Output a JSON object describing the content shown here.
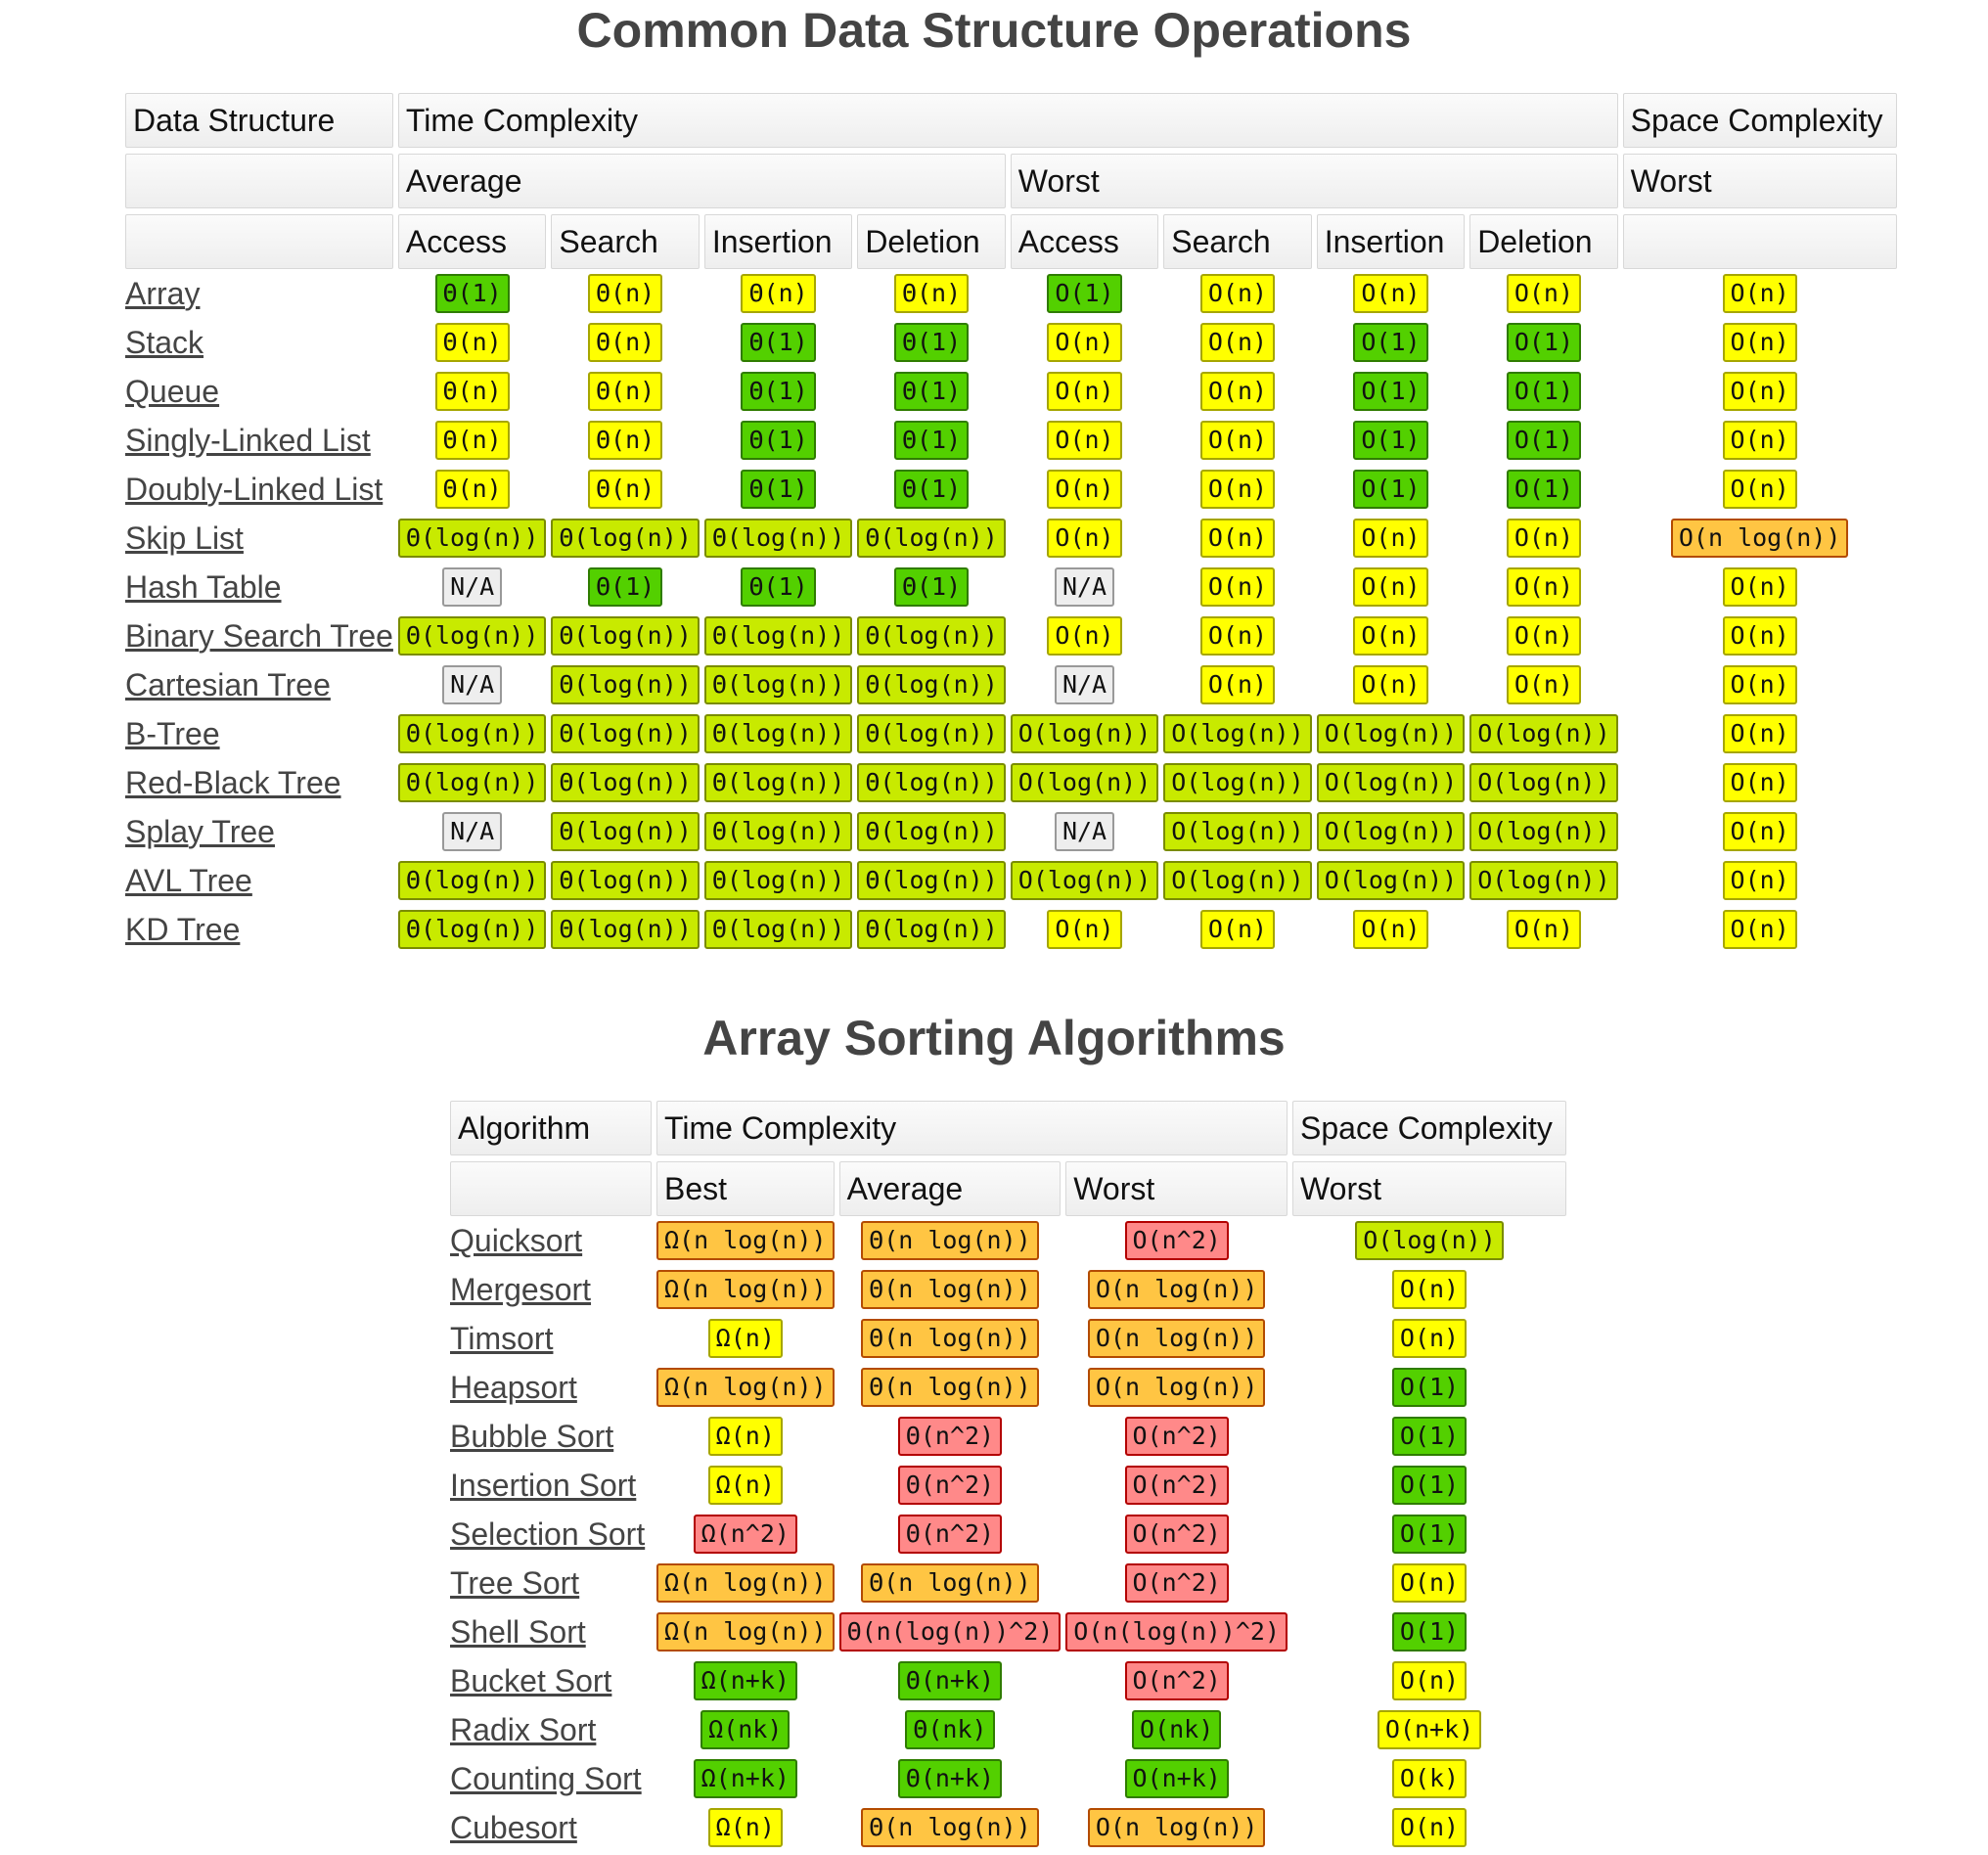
{
  "colors": {
    "green": "#53d000",
    "yellow-green": "#c8ea00",
    "yellow": "#ffff00",
    "orange": "#ffc543",
    "red": "#ff8989",
    "gray": "#eeeeee"
  },
  "ds": {
    "title": "Common Data Structure Operations",
    "header": {
      "data_structure": "Data Structure",
      "time_complexity": "Time Complexity",
      "space_complexity": "Space Complexity",
      "average": "Average",
      "worst": "Worst",
      "space_worst": "Worst",
      "ops": [
        "Access",
        "Search",
        "Insertion",
        "Deletion",
        "Access",
        "Search",
        "Insertion",
        "Deletion"
      ]
    },
    "rows": [
      {
        "name": "Array",
        "cells": [
          [
            "Θ(1)",
            "green"
          ],
          [
            "Θ(n)",
            "yellow"
          ],
          [
            "Θ(n)",
            "yellow"
          ],
          [
            "Θ(n)",
            "yellow"
          ],
          [
            "O(1)",
            "green"
          ],
          [
            "O(n)",
            "yellow"
          ],
          [
            "O(n)",
            "yellow"
          ],
          [
            "O(n)",
            "yellow"
          ],
          [
            "O(n)",
            "yellow"
          ]
        ]
      },
      {
        "name": "Stack",
        "cells": [
          [
            "Θ(n)",
            "yellow"
          ],
          [
            "Θ(n)",
            "yellow"
          ],
          [
            "Θ(1)",
            "green"
          ],
          [
            "Θ(1)",
            "green"
          ],
          [
            "O(n)",
            "yellow"
          ],
          [
            "O(n)",
            "yellow"
          ],
          [
            "O(1)",
            "green"
          ],
          [
            "O(1)",
            "green"
          ],
          [
            "O(n)",
            "yellow"
          ]
        ]
      },
      {
        "name": "Queue",
        "cells": [
          [
            "Θ(n)",
            "yellow"
          ],
          [
            "Θ(n)",
            "yellow"
          ],
          [
            "Θ(1)",
            "green"
          ],
          [
            "Θ(1)",
            "green"
          ],
          [
            "O(n)",
            "yellow"
          ],
          [
            "O(n)",
            "yellow"
          ],
          [
            "O(1)",
            "green"
          ],
          [
            "O(1)",
            "green"
          ],
          [
            "O(n)",
            "yellow"
          ]
        ]
      },
      {
        "name": "Singly-Linked List",
        "cells": [
          [
            "Θ(n)",
            "yellow"
          ],
          [
            "Θ(n)",
            "yellow"
          ],
          [
            "Θ(1)",
            "green"
          ],
          [
            "Θ(1)",
            "green"
          ],
          [
            "O(n)",
            "yellow"
          ],
          [
            "O(n)",
            "yellow"
          ],
          [
            "O(1)",
            "green"
          ],
          [
            "O(1)",
            "green"
          ],
          [
            "O(n)",
            "yellow"
          ]
        ]
      },
      {
        "name": "Doubly-Linked List",
        "cells": [
          [
            "Θ(n)",
            "yellow"
          ],
          [
            "Θ(n)",
            "yellow"
          ],
          [
            "Θ(1)",
            "green"
          ],
          [
            "Θ(1)",
            "green"
          ],
          [
            "O(n)",
            "yellow"
          ],
          [
            "O(n)",
            "yellow"
          ],
          [
            "O(1)",
            "green"
          ],
          [
            "O(1)",
            "green"
          ],
          [
            "O(n)",
            "yellow"
          ]
        ]
      },
      {
        "name": "Skip List",
        "cells": [
          [
            "Θ(log(n))",
            "yellow-green"
          ],
          [
            "Θ(log(n))",
            "yellow-green"
          ],
          [
            "Θ(log(n))",
            "yellow-green"
          ],
          [
            "Θ(log(n))",
            "yellow-green"
          ],
          [
            "O(n)",
            "yellow"
          ],
          [
            "O(n)",
            "yellow"
          ],
          [
            "O(n)",
            "yellow"
          ],
          [
            "O(n)",
            "yellow"
          ],
          [
            "O(n log(n))",
            "orange"
          ]
        ]
      },
      {
        "name": "Hash Table",
        "cells": [
          [
            "N/A",
            "gray"
          ],
          [
            "Θ(1)",
            "green"
          ],
          [
            "Θ(1)",
            "green"
          ],
          [
            "Θ(1)",
            "green"
          ],
          [
            "N/A",
            "gray"
          ],
          [
            "O(n)",
            "yellow"
          ],
          [
            "O(n)",
            "yellow"
          ],
          [
            "O(n)",
            "yellow"
          ],
          [
            "O(n)",
            "yellow"
          ]
        ]
      },
      {
        "name": "Binary Search Tree",
        "cells": [
          [
            "Θ(log(n))",
            "yellow-green"
          ],
          [
            "Θ(log(n))",
            "yellow-green"
          ],
          [
            "Θ(log(n))",
            "yellow-green"
          ],
          [
            "Θ(log(n))",
            "yellow-green"
          ],
          [
            "O(n)",
            "yellow"
          ],
          [
            "O(n)",
            "yellow"
          ],
          [
            "O(n)",
            "yellow"
          ],
          [
            "O(n)",
            "yellow"
          ],
          [
            "O(n)",
            "yellow"
          ]
        ]
      },
      {
        "name": "Cartesian Tree",
        "cells": [
          [
            "N/A",
            "gray"
          ],
          [
            "Θ(log(n))",
            "yellow-green"
          ],
          [
            "Θ(log(n))",
            "yellow-green"
          ],
          [
            "Θ(log(n))",
            "yellow-green"
          ],
          [
            "N/A",
            "gray"
          ],
          [
            "O(n)",
            "yellow"
          ],
          [
            "O(n)",
            "yellow"
          ],
          [
            "O(n)",
            "yellow"
          ],
          [
            "O(n)",
            "yellow"
          ]
        ]
      },
      {
        "name": "B-Tree",
        "cells": [
          [
            "Θ(log(n))",
            "yellow-green"
          ],
          [
            "Θ(log(n))",
            "yellow-green"
          ],
          [
            "Θ(log(n))",
            "yellow-green"
          ],
          [
            "Θ(log(n))",
            "yellow-green"
          ],
          [
            "O(log(n))",
            "yellow-green"
          ],
          [
            "O(log(n))",
            "yellow-green"
          ],
          [
            "O(log(n))",
            "yellow-green"
          ],
          [
            "O(log(n))",
            "yellow-green"
          ],
          [
            "O(n)",
            "yellow"
          ]
        ]
      },
      {
        "name": "Red-Black Tree",
        "cells": [
          [
            "Θ(log(n))",
            "yellow-green"
          ],
          [
            "Θ(log(n))",
            "yellow-green"
          ],
          [
            "Θ(log(n))",
            "yellow-green"
          ],
          [
            "Θ(log(n))",
            "yellow-green"
          ],
          [
            "O(log(n))",
            "yellow-green"
          ],
          [
            "O(log(n))",
            "yellow-green"
          ],
          [
            "O(log(n))",
            "yellow-green"
          ],
          [
            "O(log(n))",
            "yellow-green"
          ],
          [
            "O(n)",
            "yellow"
          ]
        ]
      },
      {
        "name": "Splay Tree",
        "cells": [
          [
            "N/A",
            "gray"
          ],
          [
            "Θ(log(n))",
            "yellow-green"
          ],
          [
            "Θ(log(n))",
            "yellow-green"
          ],
          [
            "Θ(log(n))",
            "yellow-green"
          ],
          [
            "N/A",
            "gray"
          ],
          [
            "O(log(n))",
            "yellow-green"
          ],
          [
            "O(log(n))",
            "yellow-green"
          ],
          [
            "O(log(n))",
            "yellow-green"
          ],
          [
            "O(n)",
            "yellow"
          ]
        ]
      },
      {
        "name": "AVL Tree",
        "cells": [
          [
            "Θ(log(n))",
            "yellow-green"
          ],
          [
            "Θ(log(n))",
            "yellow-green"
          ],
          [
            "Θ(log(n))",
            "yellow-green"
          ],
          [
            "Θ(log(n))",
            "yellow-green"
          ],
          [
            "O(log(n))",
            "yellow-green"
          ],
          [
            "O(log(n))",
            "yellow-green"
          ],
          [
            "O(log(n))",
            "yellow-green"
          ],
          [
            "O(log(n))",
            "yellow-green"
          ],
          [
            "O(n)",
            "yellow"
          ]
        ]
      },
      {
        "name": "KD Tree",
        "cells": [
          [
            "Θ(log(n))",
            "yellow-green"
          ],
          [
            "Θ(log(n))",
            "yellow-green"
          ],
          [
            "Θ(log(n))",
            "yellow-green"
          ],
          [
            "Θ(log(n))",
            "yellow-green"
          ],
          [
            "O(n)",
            "yellow"
          ],
          [
            "O(n)",
            "yellow"
          ],
          [
            "O(n)",
            "yellow"
          ],
          [
            "O(n)",
            "yellow"
          ],
          [
            "O(n)",
            "yellow"
          ]
        ]
      }
    ]
  },
  "sort": {
    "title": "Array Sorting Algorithms",
    "header": {
      "algorithm": "Algorithm",
      "time_complexity": "Time Complexity",
      "space_complexity": "Space Complexity",
      "best": "Best",
      "average": "Average",
      "worst": "Worst",
      "space_worst": "Worst"
    },
    "rows": [
      {
        "name": "Quicksort",
        "cells": [
          [
            "Ω(n log(n))",
            "orange"
          ],
          [
            "Θ(n log(n))",
            "orange"
          ],
          [
            "O(n^2)",
            "red"
          ],
          [
            "O(log(n))",
            "yellow-green"
          ]
        ]
      },
      {
        "name": "Mergesort",
        "cells": [
          [
            "Ω(n log(n))",
            "orange"
          ],
          [
            "Θ(n log(n))",
            "orange"
          ],
          [
            "O(n log(n))",
            "orange"
          ],
          [
            "O(n)",
            "yellow"
          ]
        ]
      },
      {
        "name": "Timsort",
        "cells": [
          [
            "Ω(n)",
            "yellow"
          ],
          [
            "Θ(n log(n))",
            "orange"
          ],
          [
            "O(n log(n))",
            "orange"
          ],
          [
            "O(n)",
            "yellow"
          ]
        ]
      },
      {
        "name": "Heapsort",
        "cells": [
          [
            "Ω(n log(n))",
            "orange"
          ],
          [
            "Θ(n log(n))",
            "orange"
          ],
          [
            "O(n log(n))",
            "orange"
          ],
          [
            "O(1)",
            "green"
          ]
        ]
      },
      {
        "name": "Bubble Sort",
        "cells": [
          [
            "Ω(n)",
            "yellow"
          ],
          [
            "Θ(n^2)",
            "red"
          ],
          [
            "O(n^2)",
            "red"
          ],
          [
            "O(1)",
            "green"
          ]
        ]
      },
      {
        "name": "Insertion Sort",
        "cells": [
          [
            "Ω(n)",
            "yellow"
          ],
          [
            "Θ(n^2)",
            "red"
          ],
          [
            "O(n^2)",
            "red"
          ],
          [
            "O(1)",
            "green"
          ]
        ]
      },
      {
        "name": "Selection Sort",
        "cells": [
          [
            "Ω(n^2)",
            "red"
          ],
          [
            "Θ(n^2)",
            "red"
          ],
          [
            "O(n^2)",
            "red"
          ],
          [
            "O(1)",
            "green"
          ]
        ]
      },
      {
        "name": "Tree Sort",
        "cells": [
          [
            "Ω(n log(n))",
            "orange"
          ],
          [
            "Θ(n log(n))",
            "orange"
          ],
          [
            "O(n^2)",
            "red"
          ],
          [
            "O(n)",
            "yellow"
          ]
        ]
      },
      {
        "name": "Shell Sort",
        "cells": [
          [
            "Ω(n log(n))",
            "orange"
          ],
          [
            "Θ(n(log(n))^2)",
            "red"
          ],
          [
            "O(n(log(n))^2)",
            "red"
          ],
          [
            "O(1)",
            "green"
          ]
        ]
      },
      {
        "name": "Bucket Sort",
        "cells": [
          [
            "Ω(n+k)",
            "green"
          ],
          [
            "Θ(n+k)",
            "green"
          ],
          [
            "O(n^2)",
            "red"
          ],
          [
            "O(n)",
            "yellow"
          ]
        ]
      },
      {
        "name": "Radix Sort",
        "cells": [
          [
            "Ω(nk)",
            "green"
          ],
          [
            "Θ(nk)",
            "green"
          ],
          [
            "O(nk)",
            "green"
          ],
          [
            "O(n+k)",
            "yellow"
          ]
        ]
      },
      {
        "name": "Counting Sort",
        "cells": [
          [
            "Ω(n+k)",
            "green"
          ],
          [
            "Θ(n+k)",
            "green"
          ],
          [
            "O(n+k)",
            "green"
          ],
          [
            "O(k)",
            "yellow"
          ]
        ]
      },
      {
        "name": "Cubesort",
        "cells": [
          [
            "Ω(n)",
            "yellow"
          ],
          [
            "Θ(n log(n))",
            "orange"
          ],
          [
            "O(n log(n))",
            "orange"
          ],
          [
            "O(n)",
            "yellow"
          ]
        ]
      }
    ]
  }
}
